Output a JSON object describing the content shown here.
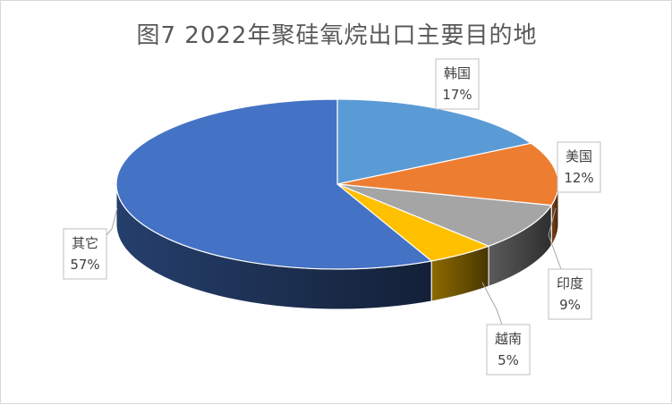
{
  "chart_data": {
    "type": "pie",
    "title": "图7  2022年聚硅氧烷出口主要目的地",
    "labels": [
      "韩国",
      "美国",
      "印度",
      "越南",
      "其它"
    ],
    "values": [
      17,
      12,
      9,
      5,
      57
    ],
    "value_labels": [
      "17%",
      "12%",
      "9%",
      "5%",
      "57%"
    ],
    "colors": [
      "#5b9bd5",
      "#ed7d31",
      "#a5a5a5",
      "#ffc000",
      "#4472c4"
    ],
    "style": "3d"
  }
}
